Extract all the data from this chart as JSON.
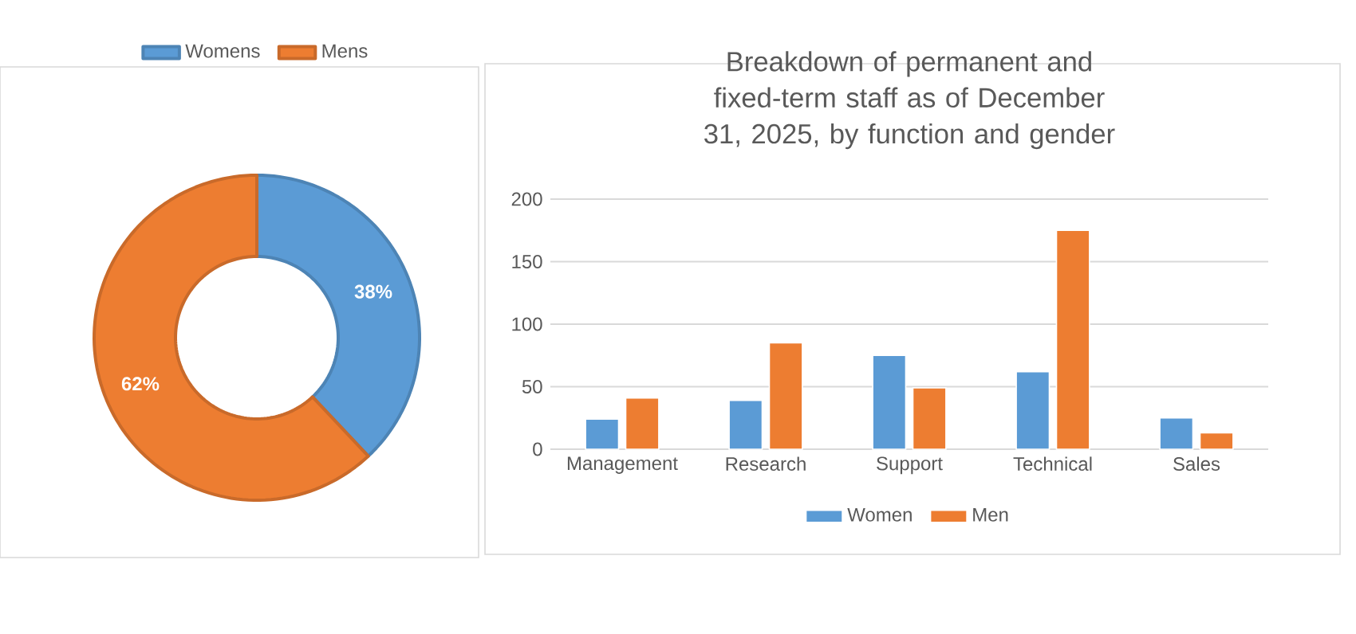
{
  "chart_data": [
    {
      "type": "donut",
      "categories": [
        "Womens",
        "Mens"
      ],
      "values": [
        38,
        62
      ],
      "colors": [
        "#5b9bd5",
        "#ed7d31"
      ],
      "value_labels": [
        "38%",
        "62%"
      ],
      "legend": "top"
    },
    {
      "type": "bar",
      "title": "Breakdown of permanent and fixed-term staff as of December 31, 2025, by function and gender",
      "categories": [
        "Management",
        "Research",
        "Support",
        "Technical",
        "Sales"
      ],
      "series": [
        {
          "name": "Women",
          "color": "#5b9bd5",
          "values": [
            24,
            39,
            75,
            62,
            25
          ]
        },
        {
          "name": "Men",
          "color": "#ed7d31",
          "values": [
            41,
            85,
            49,
            175,
            13
          ]
        }
      ],
      "ylim": [
        0,
        200
      ],
      "yticks": [
        0,
        50,
        100,
        150,
        200
      ],
      "grid": "y",
      "legend": "bottom"
    }
  ]
}
